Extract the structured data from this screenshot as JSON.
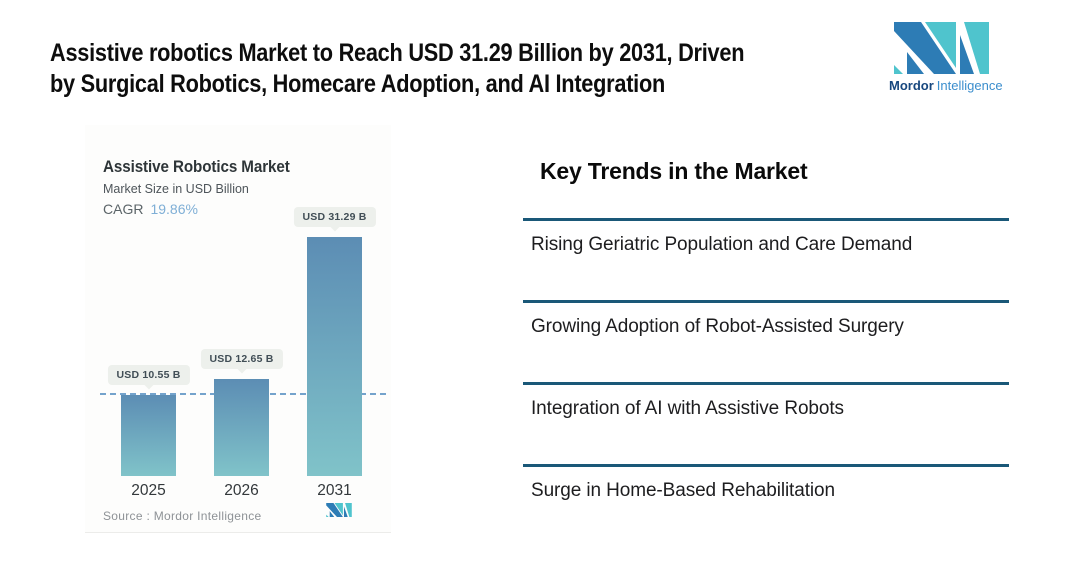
{
  "header": {
    "title_lines": [
      "Assistive robotics Market to Reach USD 31.29 Billion by 2031, Driven",
      "by Surgical Robotics, Homecare Adoption, and AI Integration"
    ],
    "logo": {
      "brand_bold": "Mordor",
      "brand_light": "Intelligence",
      "teal": "#4FC4CD",
      "blue": "#2D7CB5"
    }
  },
  "chart_card": {
    "title": "Assistive Robotics Market",
    "subtitle": "Market Size in USD Billion",
    "cagr_label": "CAGR",
    "cagr_value": "19.86%",
    "source": "Source :  Mordor Intelligence"
  },
  "chart_data": {
    "type": "bar",
    "title": "Assistive Robotics Market",
    "subtitle": "Market Size in USD Billion",
    "cagr": "19.86%",
    "categories": [
      "2025",
      "2026",
      "2031"
    ],
    "values": [
      10.55,
      12.65,
      31.29
    ],
    "bar_labels": [
      "USD 10.55 B",
      "USD 12.65 B",
      "USD 31.29 B"
    ],
    "ylim": [
      0,
      31.29
    ],
    "reference_line_value": 10.55,
    "grid": false,
    "legend": "none",
    "bar_gradient_top": "#5C8DB4",
    "bar_gradient_bottom": "#80C3C9",
    "reference_line_color": "#74A3CC",
    "source": "Source :  Mordor Intelligence"
  },
  "trends": {
    "heading": "Key Trends in the Market",
    "rule_color": "#1A5878",
    "items": [
      {
        "label": "Rising Geriatric Population and Care Demand"
      },
      {
        "label": "Growing Adoption of Robot-Assisted Surgery"
      },
      {
        "label": "Integration of AI with Assistive Robots"
      },
      {
        "label": "Surge in Home-Based Rehabilitation"
      }
    ]
  }
}
